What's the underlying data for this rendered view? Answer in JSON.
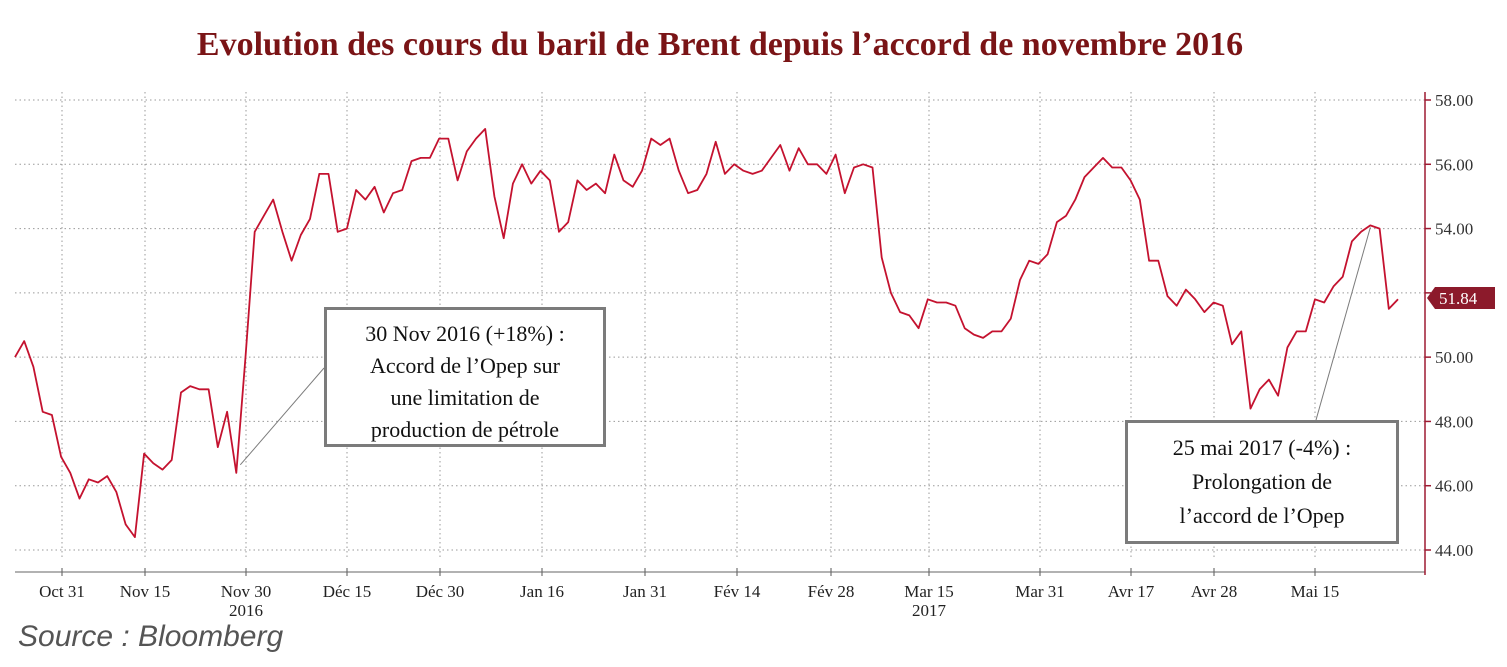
{
  "chart_data": {
    "type": "line",
    "title": "Evolution des cours du baril de Brent depuis l’accord de novembre 2016",
    "xlabel": "",
    "ylabel": "",
    "ylim": [
      44,
      58
    ],
    "y_ticks": [
      "44.00",
      "46.00",
      "48.00",
      "50.00",
      "52.00",
      "54.00",
      "56.00",
      "58.00"
    ],
    "y_axis_side": "right",
    "grid": true,
    "legend": "none",
    "x_ticks": [
      {
        "label": "Oct 31",
        "sub": ""
      },
      {
        "label": "Nov 15",
        "sub": ""
      },
      {
        "label": "Nov 30",
        "sub": "2016"
      },
      {
        "label": "Déc 15",
        "sub": ""
      },
      {
        "label": "Déc 30",
        "sub": ""
      },
      {
        "label": "Jan 16",
        "sub": ""
      },
      {
        "label": "Jan 31",
        "sub": ""
      },
      {
        "label": "Fév 14",
        "sub": ""
      },
      {
        "label": "Fév 28",
        "sub": ""
      },
      {
        "label": "Mar 15",
        "sub": "2017"
      },
      {
        "label": "Mar 31",
        "sub": ""
      },
      {
        "label": "Avr 17",
        "sub": ""
      },
      {
        "label": "Avr 28",
        "sub": ""
      },
      {
        "label": "Mai 15",
        "sub": ""
      }
    ],
    "last_value_label": "51.84",
    "series": [
      {
        "name": "",
        "color": "#c4122f",
        "values": [
          50.0,
          50.5,
          49.7,
          48.3,
          48.2,
          46.9,
          46.4,
          45.6,
          46.2,
          46.1,
          46.3,
          45.8,
          44.8,
          44.4,
          47.0,
          46.7,
          46.5,
          46.8,
          48.9,
          49.1,
          49.0,
          49.0,
          47.2,
          48.3,
          46.4,
          50.0,
          53.9,
          54.4,
          54.9,
          53.9,
          53.0,
          53.8,
          54.3,
          55.7,
          55.7,
          53.9,
          54.0,
          55.2,
          54.9,
          55.3,
          54.5,
          55.1,
          55.2,
          56.1,
          56.2,
          56.2,
          56.8,
          56.8,
          55.5,
          56.4,
          56.8,
          57.1,
          55.0,
          53.7,
          55.4,
          56.0,
          55.4,
          55.8,
          55.5,
          53.9,
          54.2,
          55.5,
          55.2,
          55.4,
          55.1,
          56.3,
          55.5,
          55.3,
          55.8,
          56.8,
          56.6,
          56.8,
          55.8,
          55.1,
          55.2,
          55.7,
          56.7,
          55.7,
          56.0,
          55.8,
          55.7,
          55.8,
          56.2,
          56.6,
          55.8,
          56.5,
          56.0,
          56.0,
          55.7,
          56.3,
          55.1,
          55.9,
          56.0,
          55.9,
          53.1,
          52.0,
          51.4,
          51.3,
          50.9,
          51.8,
          51.7,
          51.7,
          51.6,
          50.9,
          50.7,
          50.6,
          50.8,
          50.8,
          51.2,
          52.4,
          53.0,
          52.9,
          53.2,
          54.2,
          54.4,
          54.9,
          55.6,
          55.9,
          56.2,
          55.9,
          55.9,
          55.5,
          54.9,
          53.0,
          53.0,
          51.9,
          51.6,
          52.1,
          51.8,
          51.4,
          51.7,
          51.6,
          50.4,
          50.8,
          48.4,
          49.0,
          49.3,
          48.8,
          50.3,
          50.8,
          50.8,
          51.8,
          51.7,
          52.2,
          52.5,
          53.6,
          53.9,
          54.1,
          54.0,
          51.5,
          51.8
        ]
      }
    ]
  },
  "annotations": {
    "nov": {
      "lines": [
        "30 Nov 2016 (+18%) :",
        "Accord de l’Opep sur",
        "une limitation de",
        "production de pétrole"
      ]
    },
    "may": {
      "lines": [
        "25 mai 2017 (-4%) :",
        "Prolongation de",
        "l’accord de l’Opep"
      ]
    }
  },
  "source": "Source : Bloomberg",
  "colors": {
    "title": "#7a1416",
    "line": "#c4122f",
    "axis": "#9e1b32",
    "label_bg": "#8c1a2b"
  }
}
